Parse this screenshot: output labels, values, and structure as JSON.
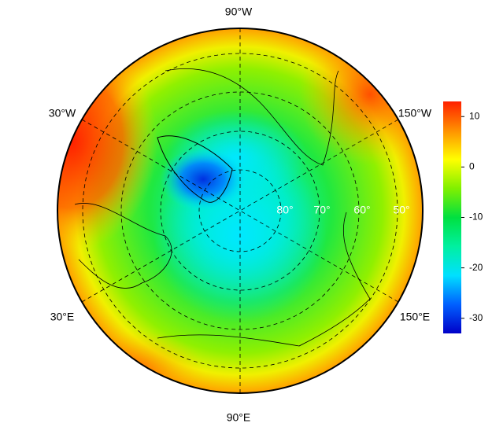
{
  "map": {
    "lon_labels": [
      "90°W",
      "30°W",
      "150°W",
      "30°E",
      "150°E",
      "90°E"
    ],
    "lat_labels": [
      "80°",
      "70°",
      "60°",
      "50°"
    ],
    "colorbar": {
      "lim": [
        -33,
        13
      ],
      "ticks": [
        10,
        0,
        -10,
        -20,
        -30
      ],
      "colors": [
        "#0000c8",
        "#0060ff",
        "#00e0ff",
        "#00f0a0",
        "#00e040",
        "#80f000",
        "#ffff00",
        "#ff9000",
        "#ff2000"
      ]
    }
  }
}
